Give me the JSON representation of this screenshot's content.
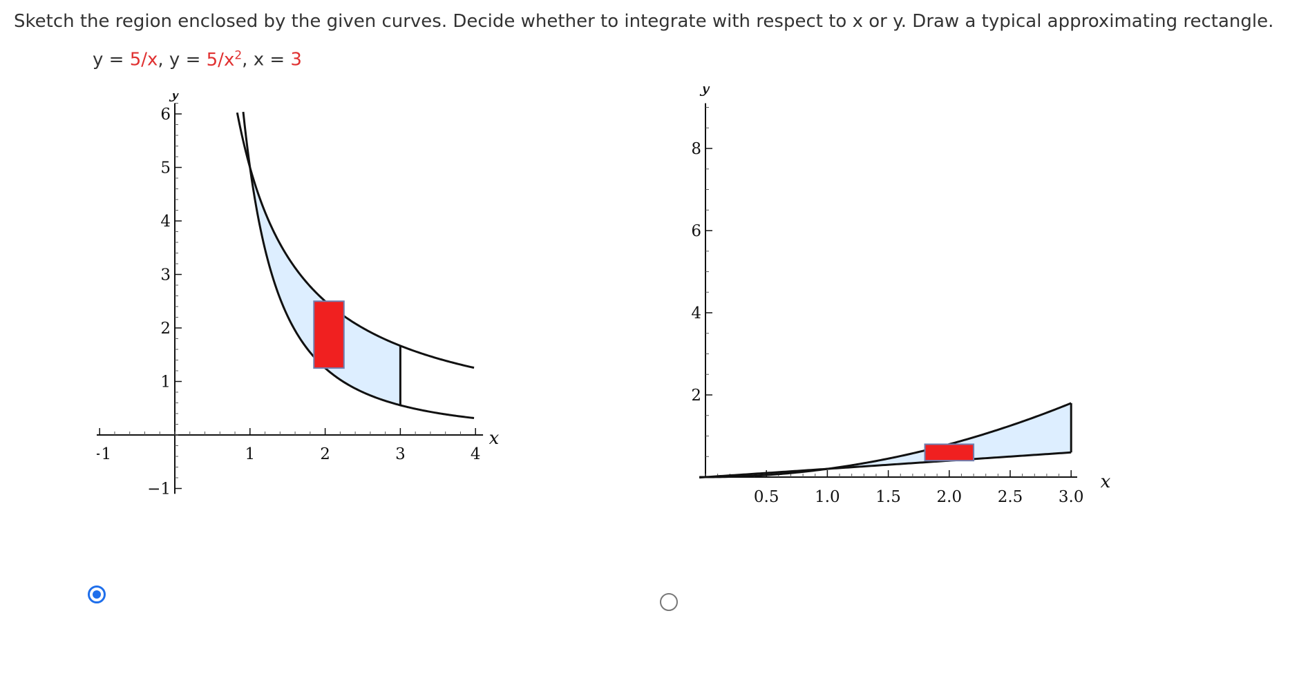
{
  "question": {
    "text": "Sketch the region enclosed by the given curves. Decide whether to integrate with respect to x or y. Draw a typical approximating rectangle."
  },
  "equation": {
    "y1_prefix": "y = ",
    "y1_value": "5/x",
    "sep1": ",  y = ",
    "y2_value": "5/x",
    "y2_exp": "2",
    "sep2": ",  x = ",
    "x_value": "3"
  },
  "options": [
    {
      "selected": true,
      "chart_data": {
        "type": "line",
        "xlabel": "x",
        "ylabel": "y",
        "xlim": [
          -1.2,
          4.1
        ],
        "ylim": [
          -1.2,
          6.3
        ],
        "x_ticks": [
          "-1",
          "1",
          "2",
          "3",
          "4"
        ],
        "y_ticks": [
          "-1",
          "1",
          "2",
          "3",
          "4",
          "5",
          "6"
        ],
        "series": [
          {
            "equation": "y = 5/x",
            "x_range": [
              0.83,
              3.98
            ]
          },
          {
            "equation": "y = 5/x^2",
            "x_range": [
              0.91,
              3.98
            ]
          }
        ],
        "region": {
          "between": [
            "5/x",
            "5/x^2"
          ],
          "x_from": 1,
          "x_to": 3,
          "fill": "#ddeeff"
        },
        "boundary_line": {
          "x": 3
        },
        "approx_rectangle": {
          "x_from": 1.85,
          "x_to": 2.25,
          "y_from": 1.25,
          "y_to": 2.5,
          "fill": "#f02020"
        }
      }
    },
    {
      "selected": false,
      "chart_data": {
        "type": "line",
        "xlabel": "x",
        "ylabel": "y",
        "xlim": [
          0,
          3.15
        ],
        "ylim": [
          0,
          9.2
        ],
        "x_ticks": [
          "0.5",
          "1.0",
          "1.5",
          "2.0",
          "2.5",
          "3.0"
        ],
        "y_ticks": [
          "2",
          "4",
          "6",
          "8"
        ],
        "series": [
          {
            "equation": "y = x^2/5",
            "x_range": [
              -0.05,
              3.0
            ]
          },
          {
            "equation": "y = x/5",
            "x_range": [
              -0.05,
              3.0
            ]
          }
        ],
        "region": {
          "between": [
            "x^2/5",
            "x/5"
          ],
          "x_from": 1,
          "x_to": 3,
          "fill": "#ddeeff"
        },
        "boundary_line": {
          "x": 3
        },
        "approx_rectangle": {
          "x_from": 1.8,
          "x_to": 2.2,
          "y_from": 0.4,
          "y_to": 0.8,
          "fill": "#f02020"
        }
      }
    }
  ],
  "colors": {
    "region_fill": "#ddeeff",
    "rectangle_fill": "#f02020",
    "rectangle_stroke": "#6f7fb0",
    "radio_selected": "#1f6feb"
  }
}
